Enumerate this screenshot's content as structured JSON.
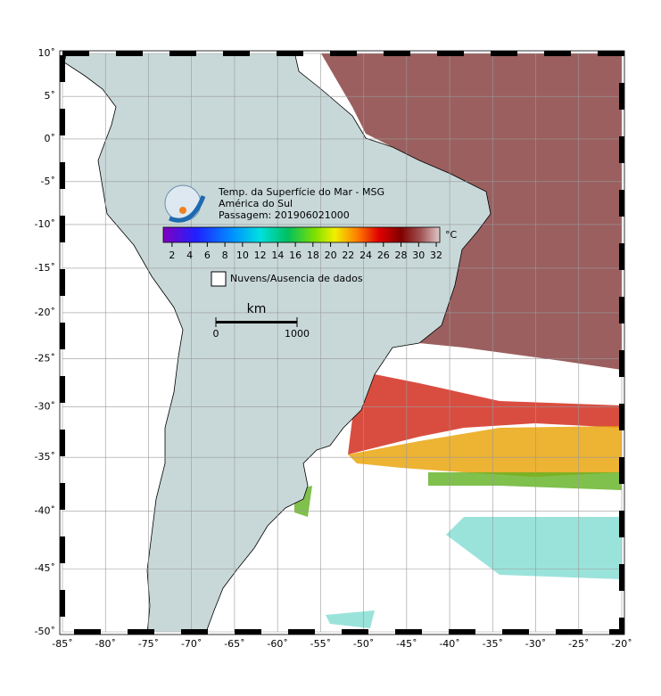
{
  "header": {
    "title": "Temp. da Superfície do Mar - MSG",
    "region": "América do Sul",
    "pass": "Passagem: 201906021000"
  },
  "colorbar": {
    "lim": [
      1,
      32.4
    ],
    "ticks": [
      2,
      4,
      6,
      8,
      10,
      12,
      14,
      16,
      18,
      20,
      22,
      24,
      26,
      28,
      30,
      32
    ],
    "unit": "°C"
  },
  "legend": {
    "label": "Nuvens/Ausencia de dados"
  },
  "scale_bar": {
    "unit": "km",
    "ticks": [
      0,
      1000
    ]
  },
  "map": {
    "lonlim": [
      -85,
      -20
    ],
    "latlim": [
      -50,
      10
    ],
    "lon_ticks": [
      {
        "value": -85,
        "label": "-85˚"
      },
      {
        "value": -80,
        "label": "-80˚"
      },
      {
        "value": -75,
        "label": "-75˚"
      },
      {
        "value": -70,
        "label": "-70˚"
      },
      {
        "value": -65,
        "label": "-65˚"
      },
      {
        "value": -60,
        "label": "-60˚"
      },
      {
        "value": -55,
        "label": "-55˚"
      },
      {
        "value": -50,
        "label": "-50˚"
      },
      {
        "value": -45,
        "label": "-45˚"
      },
      {
        "value": -40,
        "label": "-40˚"
      },
      {
        "value": -35,
        "label": "-35˚"
      },
      {
        "value": -30,
        "label": "-30˚"
      },
      {
        "value": -25,
        "label": "-25˚"
      },
      {
        "value": -20,
        "label": "-20˚"
      }
    ],
    "lat_ticks": [
      {
        "value": 10,
        "label": "10˚"
      },
      {
        "value": 5,
        "label": "5˚"
      },
      {
        "value": 0,
        "label": "0˚"
      },
      {
        "value": -5,
        "label": "-5˚"
      },
      {
        "value": -10,
        "label": "-10˚"
      },
      {
        "value": -15,
        "label": "-15˚"
      },
      {
        "value": -20,
        "label": "-20˚"
      },
      {
        "value": -25,
        "label": "-25˚"
      },
      {
        "value": -30,
        "label": "-30˚"
      },
      {
        "value": -35,
        "label": "-35˚"
      },
      {
        "value": -40,
        "label": "-40˚"
      },
      {
        "value": -45,
        "label": "-45˚"
      },
      {
        "value": -50,
        "label": "-50˚"
      }
    ]
  }
}
